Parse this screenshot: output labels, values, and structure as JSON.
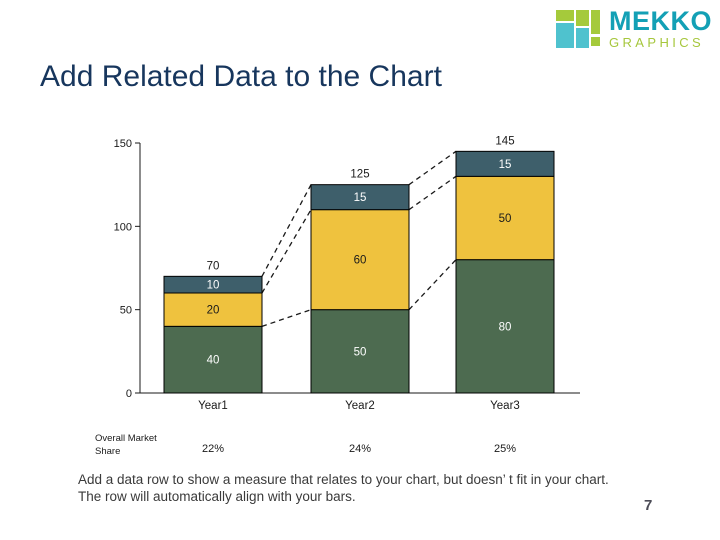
{
  "page": {
    "title": "Add Related Data to the Chart",
    "page_number": "7",
    "description_line1": "Add a data row to show a measure that relates to your chart, but doesn’ t fit in your chart.",
    "description_line2": "The row will automatically align with your bars."
  },
  "logo": {
    "name": "MEKKO",
    "subname": "GRAPHICS",
    "teal_text": "#13A0B5",
    "green_text": "#A6C73D",
    "mark_teal": "#4FC2CE",
    "mark_green": "#A5CA3B"
  },
  "chart_data": {
    "type": "bar",
    "stacked": true,
    "title": "",
    "xlabel": "",
    "ylabel": "",
    "categories": [
      "Year1",
      "Year2",
      "Year3"
    ],
    "series": [
      {
        "name": "bottom-segment",
        "color": "#4D6B50",
        "label_color": "#ffffff",
        "values": [
          40,
          50,
          80
        ]
      },
      {
        "name": "middle-segment",
        "color": "#EFC23E",
        "label_color": "#1a1a1a",
        "values": [
          20,
          60,
          50
        ]
      },
      {
        "name": "top-segment",
        "color": "#3E5F6B",
        "label_color": "#ffffff",
        "values": [
          10,
          15,
          15
        ]
      }
    ],
    "totals": [
      70,
      125,
      145
    ],
    "y_ticks": [
      0,
      50,
      100,
      150
    ],
    "ylim": [
      0,
      157
    ],
    "grid": false,
    "legend": false,
    "connectors": "dashed lines join segment boundaries of adjacent bars",
    "related_row": {
      "label": "Overall Market Share",
      "values": [
        "22%",
        "24%",
        "25%"
      ]
    }
  }
}
